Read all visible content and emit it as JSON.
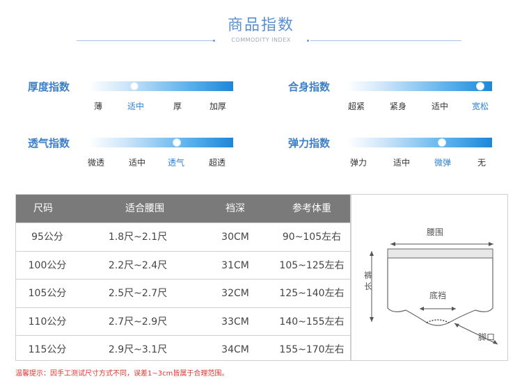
{
  "header": {
    "title": "商品指数",
    "subtitle": "COMMODITY INDEX"
  },
  "indices": [
    {
      "name": "厚度指数",
      "options": [
        "薄",
        "适中",
        "厚",
        "加厚"
      ],
      "selected": 1
    },
    {
      "name": "合身指数",
      "options": [
        "超紧",
        "紧身",
        "适中",
        "宽松"
      ],
      "selected": 3
    },
    {
      "name": "透气指数",
      "options": [
        "微透",
        "适中",
        "透气",
        "超透"
      ],
      "selected": 2
    },
    {
      "name": "弹力指数",
      "options": [
        "弹力",
        "适中",
        "微弹",
        "无"
      ],
      "selected": 2
    }
  ],
  "size_table": {
    "headers": [
      "尺码",
      "适合腰围",
      "裆深",
      "参考体重"
    ],
    "rows": [
      [
        "95公分",
        "1.8尺~2.1尺",
        "30CM",
        "90~105左右"
      ],
      [
        "100公分",
        "2.2尺~2.4尺",
        "31CM",
        "105~125左右"
      ],
      [
        "105公分",
        "2.5尺~2.7尺",
        "32CM",
        "125~140左右"
      ],
      [
        "110公分",
        "2.7尺~2.9尺",
        "33CM",
        "140~155左右"
      ],
      [
        "115公分",
        "2.9尺~3.1尺",
        "34CM",
        "155~170左右"
      ]
    ]
  },
  "diagram": {
    "waist": "腰围",
    "length": "裤长",
    "crotch": "底裆",
    "leg": "脚口"
  },
  "note": "温馨提示：因手工测试尺寸方式不同，误差1~3cm皆属于合理范围。",
  "colors": {
    "accent": "#3d7fc8",
    "header_bg": "#7a7a7a",
    "note": "#d9362f"
  }
}
